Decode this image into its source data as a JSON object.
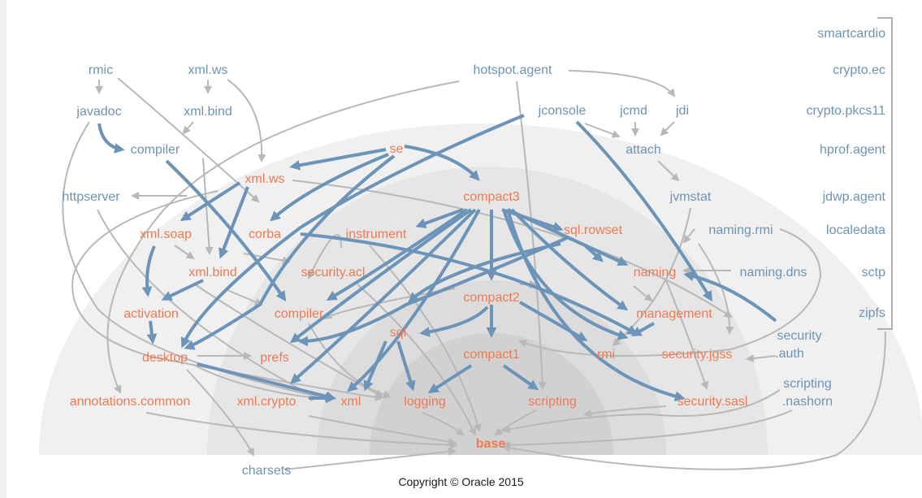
{
  "modules": {
    "smartcardio": "smartcardio",
    "crypto_ec": "crypto.ec",
    "crypto_pkcs11": "crypto.pkcs11",
    "hprof_agent": "hprof.agent",
    "jdwp_agent": "jdwp.agent",
    "localedata": "localedata",
    "sctp": "sctp",
    "zipfs": "zipfs",
    "rmic": "rmic",
    "xml_ws_top": "xml.ws",
    "javadoc": "javadoc",
    "xml_bind_top": "xml.bind",
    "compiler_top": "compiler",
    "hotspot_agent": "hotspot.agent",
    "jconsole": "jconsole",
    "jcmd": "jcmd",
    "jdi": "jdi",
    "attach": "attach",
    "jvmstat": "jvmstat",
    "httpserver": "httpserver",
    "naming_rmi": "naming.rmi",
    "naming_dns": "naming.dns",
    "security_auth_1": "security",
    "security_auth_2": ".auth",
    "scripting_nashorn_1": "scripting",
    "scripting_nashorn_2": ".nashorn",
    "charsets": "charsets",
    "se": "se",
    "xml_ws": "xml.ws",
    "compact3": "compact3",
    "instrument": "instrument",
    "sql_rowset": "sql.rowset",
    "xml_soap": "xml.soap",
    "corba": "corba",
    "xml_bind": "xml.bind",
    "security_acl": "security.acl",
    "naming": "naming",
    "activation": "activation",
    "compiler": "compiler",
    "compact2": "compact2",
    "management": "management",
    "desktop": "desktop",
    "prefs": "prefs",
    "sql": "sql",
    "compact1": "compact1",
    "rmi": "rmi",
    "security_jgss": "security.jgss",
    "annotations_common": "annotations.common",
    "xml_crypto": "xml.crypto",
    "xml": "xml",
    "logging": "logging",
    "scripting": "scripting",
    "security_sasl": "security.sasl",
    "base": "base"
  },
  "copyright": "Copyright © Oracle 2015",
  "colors": {
    "se_modules": "#ee7a52",
    "jdk_modules": "#6f93b3",
    "core_edges": "#6b94b8",
    "other_edges": "#b8b8b8"
  }
}
